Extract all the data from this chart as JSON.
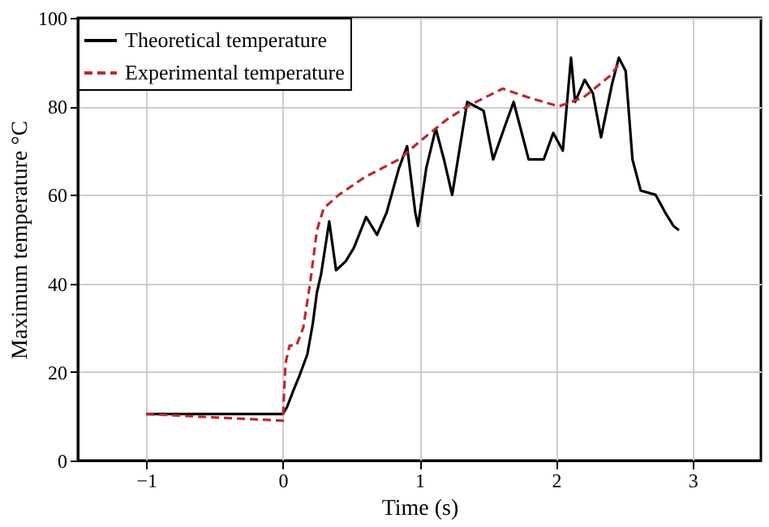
{
  "chart_data": {
    "type": "line",
    "xlabel": "Time (s)",
    "ylabel": "Maximum temperature °C",
    "xlim": [
      -1.5,
      3.5
    ],
    "xticks": [
      -1,
      0,
      1,
      2,
      3
    ],
    "ylim": [
      0,
      100
    ],
    "yticks": [
      0,
      20,
      40,
      60,
      80,
      100
    ],
    "grid": true,
    "legend": "top left",
    "series": [
      {
        "name": "Theoretical temperature",
        "color": "#000000",
        "line_style": "solid",
        "x": [
          -1,
          -0.5,
          0,
          0.03,
          0.08,
          0.12,
          0.18,
          0.22,
          0.25,
          0.28,
          0.34,
          0.39,
          0.46,
          0.52,
          0.61,
          0.69,
          0.76,
          0.85,
          0.91,
          0.97,
          0.99,
          1.05,
          1.12,
          1.18,
          1.24,
          1.35,
          1.47,
          1.54,
          1.62,
          1.69,
          1.8,
          1.91,
          1.98,
          2.05,
          2.11,
          2.14,
          2.21,
          2.27,
          2.33,
          2.41,
          2.46,
          2.51,
          2.56,
          2.62,
          2.73,
          2.8,
          2.86,
          2.9
        ],
        "values": [
          10.5,
          10.5,
          10.5,
          12,
          16,
          19,
          24,
          31,
          38,
          42,
          54,
          43,
          45,
          48,
          55,
          51,
          56,
          66,
          71,
          56,
          53,
          66,
          75,
          68,
          60,
          81,
          79,
          68,
          75,
          81,
          68,
          68,
          74,
          70,
          91,
          81,
          86,
          83,
          73,
          85,
          91,
          88,
          68,
          61,
          60,
          56,
          53,
          52
        ]
      },
      {
        "name": "Experimental temperature",
        "color": "#c0282e",
        "line_style": "dashed",
        "x": [
          -1,
          0,
          0.02,
          0.05,
          0.1,
          0.15,
          0.2,
          0.25,
          0.3,
          0.41,
          0.6,
          0.85,
          1.0,
          1.2,
          1.35,
          1.61,
          1.8,
          2.02,
          2.2,
          2.4,
          2.47
        ],
        "values": [
          10.5,
          9,
          22,
          26,
          26,
          30,
          40,
          52,
          57,
          60,
          64,
          68,
          72,
          77,
          80,
          84,
          82,
          80,
          82,
          87,
          90
        ]
      }
    ]
  }
}
